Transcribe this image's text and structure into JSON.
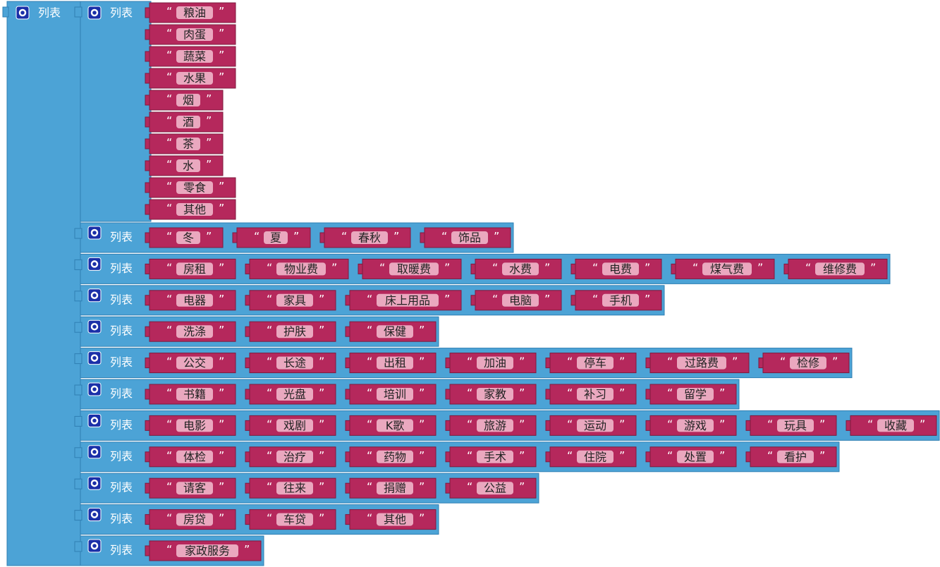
{
  "outer": {
    "label": "列表"
  },
  "quote_open": "“",
  "quote_close": "”",
  "lists": [
    {
      "label": "列表",
      "items": [
        "粮油",
        "肉蛋",
        "蔬菜",
        "水果",
        "烟",
        "酒",
        "茶",
        "水",
        "零食",
        "其他"
      ]
    },
    {
      "label": "列表",
      "items": [
        "冬",
        "夏",
        "春秋",
        "饰品"
      ]
    },
    {
      "label": "列表",
      "items": [
        "房租",
        "物业费",
        "取暖费",
        "水费",
        "电费",
        "煤气费",
        "维修费"
      ]
    },
    {
      "label": "列表",
      "items": [
        "电器",
        "家具",
        "床上用品",
        "电脑",
        "手机"
      ]
    },
    {
      "label": "列表",
      "items": [
        "洗涤",
        "护肤",
        "保健"
      ]
    },
    {
      "label": "列表",
      "items": [
        "公交",
        "长途",
        "出租",
        "加油",
        "停车",
        "过路费",
        "检修"
      ]
    },
    {
      "label": "列表",
      "items": [
        "书籍",
        "光盘",
        "培训",
        "家教",
        "补习",
        "留学"
      ]
    },
    {
      "label": "列表",
      "items": [
        "电影",
        "戏剧",
        "K歌",
        "旅游",
        "运动",
        "游戏",
        "玩具",
        "收藏"
      ]
    },
    {
      "label": "列表",
      "items": [
        "体检",
        "治疗",
        "药物",
        "手术",
        "住院",
        "处置",
        "看护"
      ]
    },
    {
      "label": "列表",
      "items": [
        "请客",
        "往来",
        "捐赠",
        "公益"
      ]
    },
    {
      "label": "列表",
      "items": [
        "房贷",
        "车贷",
        "其他"
      ]
    },
    {
      "label": "列表",
      "items": [
        "家政服务"
      ]
    }
  ]
}
